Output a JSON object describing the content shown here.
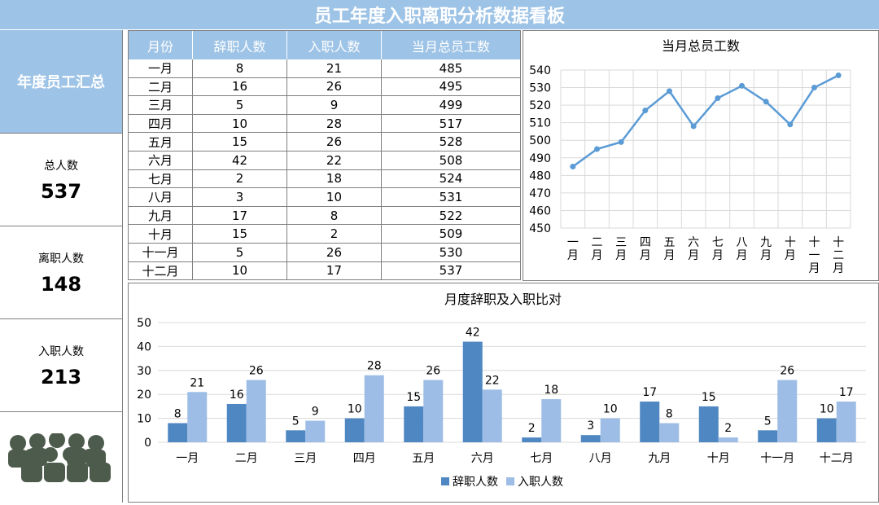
{
  "title": "员工年度入职离职分析数据看板",
  "sidebar": {
    "header": "年度员工汇总",
    "kpis": [
      {
        "label": "总人数",
        "value": "537"
      },
      {
        "label": "离职人数",
        "value": "148"
      },
      {
        "label": "入职人数",
        "value": "213"
      }
    ],
    "icon": "people-group-icon"
  },
  "table": {
    "headers": [
      "月份",
      "辞职人数",
      "入职人数",
      "当月总员工数"
    ],
    "rows": [
      [
        "一月",
        "8",
        "21",
        "485"
      ],
      [
        "二月",
        "16",
        "26",
        "495"
      ],
      [
        "三月",
        "5",
        "9",
        "499"
      ],
      [
        "四月",
        "10",
        "28",
        "517"
      ],
      [
        "五月",
        "15",
        "26",
        "528"
      ],
      [
        "六月",
        "42",
        "22",
        "508"
      ],
      [
        "七月",
        "2",
        "18",
        "524"
      ],
      [
        "八月",
        "3",
        "10",
        "531"
      ],
      [
        "九月",
        "17",
        "8",
        "522"
      ],
      [
        "十月",
        "15",
        "2",
        "509"
      ],
      [
        "十一月",
        "5",
        "26",
        "530"
      ],
      [
        "十二月",
        "10",
        "17",
        "537"
      ]
    ]
  },
  "chart_data": [
    {
      "type": "line",
      "title": "当月总员工数",
      "categories": [
        "一月",
        "二月",
        "三月",
        "四月",
        "五月",
        "六月",
        "七月",
        "八月",
        "九月",
        "十月",
        "十一月",
        "十二月"
      ],
      "values": [
        485,
        495,
        499,
        517,
        528,
        508,
        524,
        531,
        522,
        509,
        530,
        537
      ],
      "ylim": [
        450,
        540
      ],
      "yticks": [
        450,
        460,
        470,
        480,
        490,
        500,
        510,
        520,
        530,
        540
      ],
      "color": "#5b9bd5",
      "grid": true
    },
    {
      "type": "bar",
      "title": "月度辞职及入职比对",
      "categories": [
        "一月",
        "二月",
        "三月",
        "四月",
        "五月",
        "六月",
        "七月",
        "八月",
        "九月",
        "十月",
        "十一月",
        "十二月"
      ],
      "series": [
        {
          "name": "辞职人数",
          "values": [
            8,
            16,
            5,
            10,
            15,
            42,
            2,
            3,
            17,
            15,
            5,
            10
          ],
          "color": "#4f87c2"
        },
        {
          "name": "入职人数",
          "values": [
            21,
            26,
            9,
            28,
            26,
            22,
            18,
            10,
            8,
            2,
            26,
            17
          ],
          "color": "#9dbde6"
        }
      ],
      "ylim": [
        0,
        50
      ],
      "yticks": [
        0,
        10,
        20,
        30,
        40,
        50
      ],
      "legend": "bottom",
      "grid": true
    }
  ]
}
